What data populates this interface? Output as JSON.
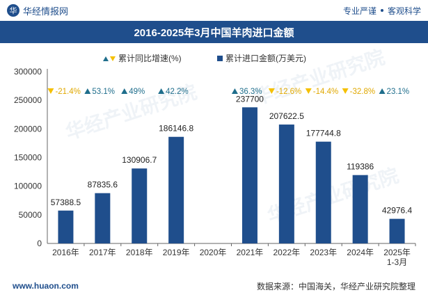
{
  "header": {
    "brand_logo": "华",
    "brand": "华经情报网",
    "tagline_left": "专业严谨",
    "tagline_right": "客观科学"
  },
  "title": "2016-2025年3月中国羊肉进口金额",
  "footer": {
    "url": "www.huaon.com",
    "source": "数据来源：中国海关，华经产业研究院整理"
  },
  "watermark": "华经产业研究院",
  "chart_data": {
    "type": "bar",
    "title": "2016-2025年3月中国羊肉进口金额",
    "categories": [
      "2016年",
      "2017年",
      "2018年",
      "2019年",
      "2020年",
      "2021年",
      "2022年",
      "2023年",
      "2024年",
      "2025年\n1-3月"
    ],
    "series": [
      {
        "name": "累计进口金额(万美元)",
        "type": "bar",
        "color": "#1f4e8c",
        "values": [
          57388.5,
          87835.6,
          130906.7,
          186146.8,
          null,
          237700,
          207622.5,
          177744.8,
          119386,
          42976.4
        ],
        "labels": [
          "57388.5",
          "87835.6",
          "130906.7",
          "186146.8",
          "",
          "237700",
          "207622.5",
          "177744.8",
          "119386",
          "42976.4"
        ]
      },
      {
        "name": "累计同比增速(%)",
        "type": "marker",
        "up_color": "#1f6e8c",
        "down_color": "#f5c000",
        "values": [
          -21.4,
          53.1,
          49,
          42.2,
          null,
          36.3,
          -12.6,
          -14.4,
          -32.8,
          23.1
        ],
        "labels": [
          "-21.4%",
          "53.1%",
          "49%",
          "42.2%",
          "",
          "36.3%",
          "-12.6%",
          "-14.4%",
          "-32.8%",
          "23.1%"
        ]
      }
    ],
    "legend": [
      "累计同比增速(%)",
      "累计进口金额(万美元)"
    ],
    "legend_position": "top",
    "ylim": [
      0,
      300000
    ],
    "yticks": [
      0,
      50000,
      100000,
      150000,
      200000,
      250000,
      300000
    ],
    "grid": false
  }
}
